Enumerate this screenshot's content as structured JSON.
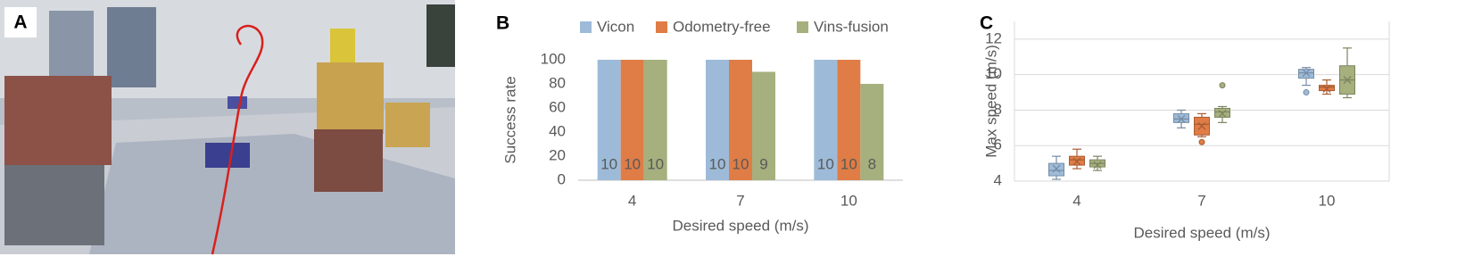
{
  "photo": {
    "label": "A"
  },
  "chart_data": [
    {
      "type": "bar",
      "panel_label": "B",
      "y_label": "Success rate",
      "x_label": "Desired speed (m/s)",
      "categories": [
        "4",
        "7",
        "10"
      ],
      "series": [
        {
          "name": "Vicon",
          "color": "#9dbbd9",
          "values": [
            100,
            100,
            100
          ],
          "counts": [
            10,
            10,
            10
          ]
        },
        {
          "name": "Odometry-free",
          "color": "#e07c45",
          "values": [
            100,
            100,
            100
          ],
          "counts": [
            10,
            10,
            10
          ]
        },
        {
          "name": "Vins-fusion",
          "color": "#a5b07e",
          "values": [
            100,
            90,
            80
          ],
          "counts": [
            10,
            9,
            8
          ]
        }
      ],
      "ylim": [
        0,
        100
      ],
      "yticks": [
        0,
        20,
        40,
        60,
        80,
        100
      ],
      "legend": "top",
      "grid": false
    },
    {
      "type": "box",
      "panel_label": "C",
      "y_label": "Max speed (m/s)",
      "x_label": "Desired speed (m/s)",
      "categories": [
        "4",
        "7",
        "10"
      ],
      "series": [
        {
          "color": "#9dbbd9",
          "boxes": [
            {
              "min": 4.1,
              "q1": 4.3,
              "median": 4.6,
              "q3": 5.0,
              "max": 5.4,
              "mean": 4.7,
              "outliers": []
            },
            {
              "min": 7.0,
              "q1": 7.3,
              "median": 7.5,
              "q3": 7.8,
              "max": 8.0,
              "mean": 7.5,
              "outliers": []
            },
            {
              "min": 9.4,
              "q1": 9.8,
              "median": 10.1,
              "q3": 10.3,
              "max": 10.4,
              "mean": 10.1,
              "outliers": [
                9.0
              ]
            }
          ]
        },
        {
          "color": "#e07c45",
          "boxes": [
            {
              "min": 4.7,
              "q1": 4.9,
              "median": 5.2,
              "q3": 5.4,
              "max": 5.8,
              "mean": 5.1,
              "outliers": []
            },
            {
              "min": 6.5,
              "q1": 6.6,
              "median": 7.2,
              "q3": 7.6,
              "max": 7.8,
              "mean": 7.1,
              "outliers": [
                6.2
              ]
            },
            {
              "min": 8.9,
              "q1": 9.1,
              "median": 9.3,
              "q3": 9.4,
              "max": 9.7,
              "mean": 9.2,
              "outliers": []
            }
          ]
        },
        {
          "color": "#a5b07e",
          "boxes": [
            {
              "min": 4.6,
              "q1": 4.8,
              "median": 5.0,
              "q3": 5.2,
              "max": 5.4,
              "mean": 4.9,
              "outliers": []
            },
            {
              "min": 7.3,
              "q1": 7.6,
              "median": 7.9,
              "q3": 8.1,
              "max": 8.2,
              "mean": 7.8,
              "outliers": [
                9.4
              ]
            },
            {
              "min": 8.7,
              "q1": 8.9,
              "median": 9.7,
              "q3": 10.5,
              "max": 11.5,
              "mean": 9.7,
              "outliers": []
            }
          ]
        }
      ],
      "ylim": [
        4,
        13
      ],
      "yticks": [
        4,
        6,
        8,
        10,
        12
      ],
      "grid": true
    }
  ]
}
